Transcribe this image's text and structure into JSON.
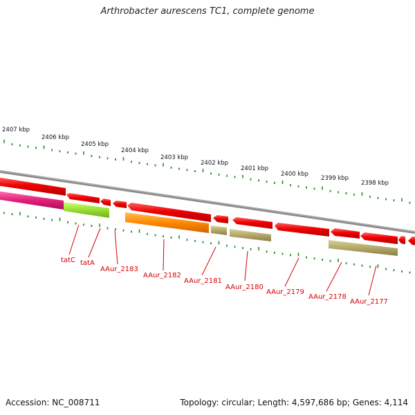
{
  "title": "Arthrobacter aurescens TC1, complete genome",
  "footer": {
    "accession": "Accession: NC_008711",
    "summary": "Topology: circular; Length: 4,597,686 bp; Genes: 4,114"
  },
  "colors": {
    "backbone": "#8a8a8a",
    "tick": "#2a8a2a",
    "label": "#d40000",
    "gene_red": "#ee0000",
    "gene_magenta": "#e0207a",
    "gene_green": "#99dd33",
    "gene_orange": "#ff8800",
    "gene_khaki": "#b3a868"
  },
  "scale": {
    "labels": [
      "2407 kbp",
      "2406 kbp",
      "2405 kbp",
      "2404 kbp",
      "2403 kbp",
      "2402 kbp",
      "2401 kbp",
      "2400 kbp",
      "2399 kbp",
      "2398 kbp"
    ]
  },
  "genes": [
    {
      "label": "tatC"
    },
    {
      "label": "tatA"
    },
    {
      "label": "AAur_2183"
    },
    {
      "label": "AAur_2182"
    },
    {
      "label": "AAur_2181"
    },
    {
      "label": "AAur_2180"
    },
    {
      "label": "AAur_2179"
    },
    {
      "label": "AAur_2178"
    },
    {
      "label": "AAur_2177"
    }
  ]
}
